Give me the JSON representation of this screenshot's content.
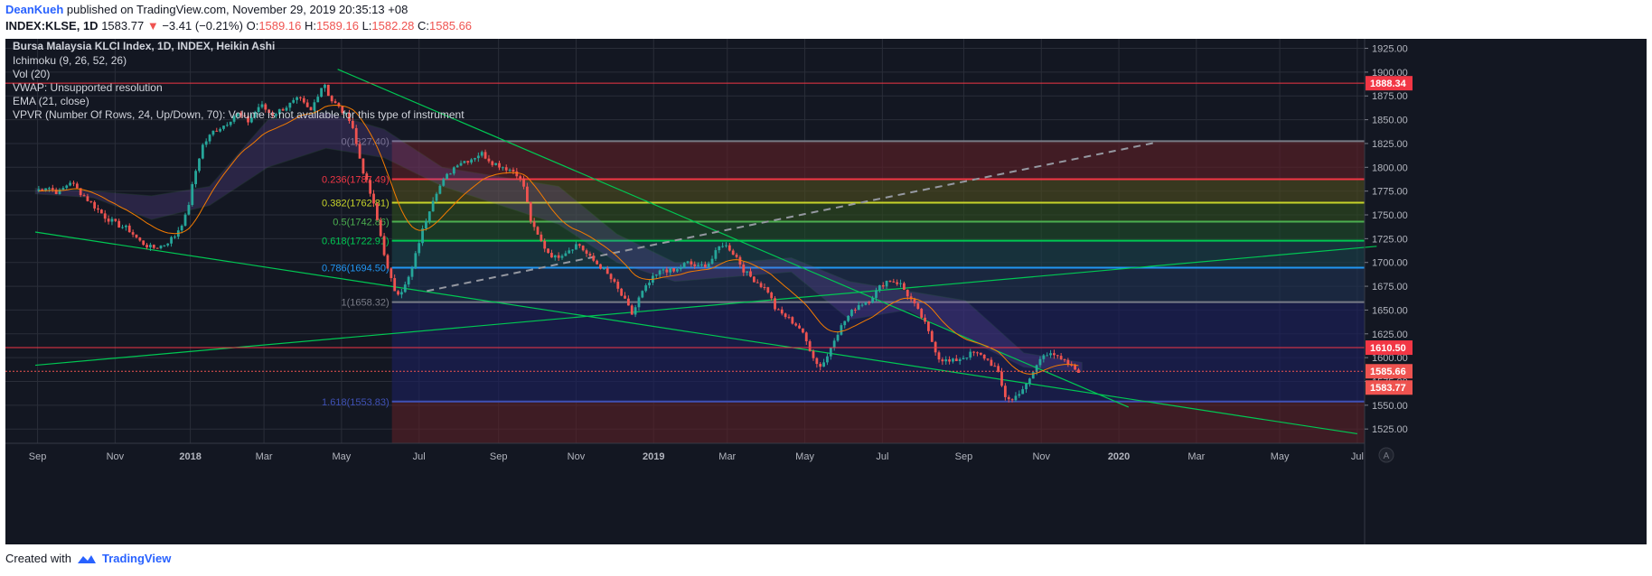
{
  "header": {
    "author": "DeanKueh",
    "published": "published on TradingView.com, November 29, 2019 20:35:13 +08",
    "symbol": "INDEX:KLSE, 1D",
    "last": "1583.77",
    "change": "−3.41 (−0.21%)",
    "o_label": "O:",
    "o_value": "1589.16",
    "h_label": "H:",
    "h_value": "1589.16",
    "l_label": "L:",
    "l_value": "1582.28",
    "c_label": "C:",
    "c_value": "1585.66"
  },
  "indicators": [
    "Bursa Malaysia KLCI Index, 1D, INDEX, Heikin Ashi",
    "Ichimoku (9, 26, 52, 26)",
    "Vol (20)",
    "VWAP: Unsupported resolution",
    "EMA (21, close)",
    "VPVR (Number Of Rows, 24, Up/Down, 70): Volume is not available for this type of instrument"
  ],
  "footer": {
    "created": "Created with",
    "brand": "TradingView"
  },
  "colors": {
    "bg": "#131722",
    "up": "#26a69a",
    "down": "#ef5350",
    "grid": "#2a2e39",
    "axis_text": "#b2b5be",
    "trend": "#00c853",
    "ema": "#f57c00"
  },
  "chart_data": {
    "type": "candlestick",
    "title": "Bursa Malaysia KLCI Index, 1D, INDEX, Heikin Ashi",
    "ylim": [
      1510,
      1935
    ],
    "y_ticks": [
      1525,
      1550,
      1575,
      1600,
      1625,
      1650,
      1675,
      1700,
      1725,
      1750,
      1775,
      1800,
      1825,
      1850,
      1875,
      1900,
      1925
    ],
    "y_tick_labels": [
      "1525.00",
      "1550.00",
      "1575.00",
      "1600.00",
      "1625.00",
      "1650.00",
      "1675.00",
      "1700.00",
      "1725.00",
      "1750.00",
      "1775.00",
      "1800.00",
      "1825.00",
      "1850.00",
      "1875.00",
      "1900.00",
      "1925.00"
    ],
    "x_ticks": [
      {
        "label": "Sep",
        "t": 0.06
      },
      {
        "label": "Nov",
        "t": 2.06
      },
      {
        "label": "2018",
        "t": 4.0
      },
      {
        "label": "Mar",
        "t": 5.9
      },
      {
        "label": "May",
        "t": 7.9
      },
      {
        "label": "Jul",
        "t": 9.9
      },
      {
        "label": "Sep",
        "t": 11.95
      },
      {
        "label": "Nov",
        "t": 13.95
      },
      {
        "label": "2019",
        "t": 15.95
      },
      {
        "label": "Mar",
        "t": 17.85
      },
      {
        "label": "May",
        "t": 19.85
      },
      {
        "label": "Jul",
        "t": 21.85
      },
      {
        "label": "Sep",
        "t": 23.95
      },
      {
        "label": "Nov",
        "t": 25.95
      },
      {
        "label": "2020",
        "t": 27.95
      },
      {
        "label": "Mar",
        "t": 29.95
      },
      {
        "label": "May",
        "t": 32.1
      },
      {
        "label": "Jul",
        "t": 34.1
      }
    ],
    "price_path": [
      [
        0,
        1775
      ],
      [
        0.3,
        1780
      ],
      [
        0.6,
        1773
      ],
      [
        0.9,
        1785
      ],
      [
        1.2,
        1772
      ],
      [
        1.5,
        1760
      ],
      [
        1.8,
        1748
      ],
      [
        2.1,
        1740
      ],
      [
        2.4,
        1735
      ],
      [
        2.7,
        1722
      ],
      [
        3.0,
        1715
      ],
      [
        3.3,
        1718
      ],
      [
        3.6,
        1728
      ],
      [
        3.9,
        1750
      ],
      [
        4.1,
        1790
      ],
      [
        4.3,
        1822
      ],
      [
        4.6,
        1838
      ],
      [
        4.9,
        1845
      ],
      [
        5.2,
        1857
      ],
      [
        5.5,
        1848
      ],
      [
        5.8,
        1866
      ],
      [
        6.1,
        1855
      ],
      [
        6.4,
        1862
      ],
      [
        6.8,
        1872
      ],
      [
        7.1,
        1858
      ],
      [
        7.3,
        1878
      ],
      [
        7.45,
        1890
      ],
      [
        7.6,
        1872
      ],
      [
        7.8,
        1864
      ],
      [
        8.0,
        1855
      ],
      [
        8.15,
        1850
      ],
      [
        8.3,
        1820
      ],
      [
        8.5,
        1790
      ],
      [
        8.7,
        1765
      ],
      [
        8.9,
        1730
      ],
      [
        9.1,
        1690
      ],
      [
        9.3,
        1668
      ],
      [
        9.5,
        1672
      ],
      [
        9.7,
        1690
      ],
      [
        9.9,
        1722
      ],
      [
        10.1,
        1748
      ],
      [
        10.3,
        1772
      ],
      [
        10.6,
        1790
      ],
      [
        10.9,
        1805
      ],
      [
        11.2,
        1808
      ],
      [
        11.5,
        1815
      ],
      [
        11.8,
        1805
      ],
      [
        12.1,
        1800
      ],
      [
        12.4,
        1795
      ],
      [
        12.6,
        1780
      ],
      [
        12.8,
        1740
      ],
      [
        13.0,
        1725
      ],
      [
        13.2,
        1712
      ],
      [
        13.4,
        1705
      ],
      [
        13.7,
        1712
      ],
      [
        14.0,
        1720
      ],
      [
        14.3,
        1705
      ],
      [
        14.6,
        1695
      ],
      [
        14.9,
        1680
      ],
      [
        15.2,
        1660
      ],
      [
        15.4,
        1645
      ],
      [
        15.6,
        1665
      ],
      [
        15.9,
        1682
      ],
      [
        16.2,
        1693
      ],
      [
        16.5,
        1690
      ],
      [
        16.8,
        1700
      ],
      [
        17.1,
        1695
      ],
      [
        17.4,
        1700
      ],
      [
        17.7,
        1720
      ],
      [
        17.9,
        1715
      ],
      [
        18.1,
        1705
      ],
      [
        18.3,
        1690
      ],
      [
        18.6,
        1680
      ],
      [
        18.9,
        1670
      ],
      [
        19.1,
        1650
      ],
      [
        19.4,
        1642
      ],
      [
        19.7,
        1632
      ],
      [
        19.95,
        1612
      ],
      [
        20.2,
        1590
      ],
      [
        20.4,
        1598
      ],
      [
        20.6,
        1620
      ],
      [
        20.9,
        1640
      ],
      [
        21.2,
        1655
      ],
      [
        21.5,
        1660
      ],
      [
        21.8,
        1675
      ],
      [
        22.0,
        1682
      ],
      [
        22.3,
        1678
      ],
      [
        22.6,
        1660
      ],
      [
        22.9,
        1640
      ],
      [
        23.1,
        1620
      ],
      [
        23.3,
        1600
      ],
      [
        23.6,
        1595
      ],
      [
        23.9,
        1600
      ],
      [
        24.2,
        1605
      ],
      [
        24.5,
        1600
      ],
      [
        24.8,
        1588
      ],
      [
        25.0,
        1560
      ],
      [
        25.2,
        1555
      ],
      [
        25.4,
        1565
      ],
      [
        25.6,
        1572
      ],
      [
        25.8,
        1590
      ],
      [
        26.0,
        1603
      ],
      [
        26.2,
        1607
      ],
      [
        26.4,
        1598
      ],
      [
        26.6,
        1594
      ],
      [
        26.8,
        1588
      ],
      [
        26.95,
        1586
      ]
    ],
    "fib_levels": [
      {
        "ratio": "0",
        "price": 1827.4,
        "label": "0(1827.40)",
        "color": "#787b86"
      },
      {
        "ratio": "0.236",
        "price": 1787.49,
        "label": "0.236(1787.49)",
        "color": "#f23645"
      },
      {
        "ratio": "0.382",
        "price": 1762.81,
        "label": "0.382(1762.81)",
        "color": "#c7d42a"
      },
      {
        "ratio": "0.5",
        "price": 1742.86,
        "label": "0.5(1742.86)",
        "color": "#4caf50"
      },
      {
        "ratio": "0.618",
        "price": 1722.91,
        "label": "0.618(1722.91)",
        "color": "#00c853"
      },
      {
        "ratio": "0.786",
        "price": 1694.5,
        "label": "0.786(1694.50)",
        "color": "#2196f3"
      },
      {
        "ratio": "1",
        "price": 1658.32,
        "label": "1(1658.32)",
        "color": "#787b86"
      },
      {
        "ratio": "1.618",
        "price": 1553.83,
        "label": "1.618(1553.83)",
        "color": "#3f51b5"
      }
    ],
    "fib_start_t": 9.2,
    "horizontal_levels": [
      {
        "price": 1888.34,
        "label": "1888.34",
        "color": "#f23645"
      },
      {
        "price": 1610.5,
        "label": "1610.50",
        "color": "#f23645"
      }
    ],
    "price_labels": [
      {
        "price": 1585.66,
        "label": "1585.66",
        "color": "#ef5350"
      },
      {
        "price": 1583.77,
        "label": "1583.77",
        "color": "#ef5350"
      }
    ],
    "trend_lines": [
      {
        "t1": 7.8,
        "p1": 1903,
        "t2": 28.2,
        "p2": 1548
      },
      {
        "t1": 0,
        "p1": 1732,
        "t2": 34.1,
        "p2": 1520
      },
      {
        "t1": 0,
        "p1": 1592,
        "t2": 34.6,
        "p2": 1717
      }
    ],
    "dashed_line": {
      "t1": 10.1,
      "p1": 1670,
      "t2": 28.9,
      "p2": 1826
    },
    "cloud_samples": [
      [
        0,
        1772,
        1778
      ],
      [
        1.5,
        1768,
        1775
      ],
      [
        3,
        1745,
        1770
      ],
      [
        4.5,
        1760,
        1780
      ],
      [
        6,
        1800,
        1850
      ],
      [
        7.5,
        1820,
        1858
      ],
      [
        9,
        1810,
        1840
      ],
      [
        10.5,
        1780,
        1800
      ],
      [
        12,
        1760,
        1790
      ],
      [
        13.5,
        1740,
        1780
      ],
      [
        15,
        1700,
        1730
      ],
      [
        16.5,
        1680,
        1700
      ],
      [
        18,
        1685,
        1700
      ],
      [
        19.5,
        1690,
        1705
      ],
      [
        21,
        1640,
        1680
      ],
      [
        22.5,
        1650,
        1670
      ],
      [
        24,
        1620,
        1660
      ],
      [
        25.5,
        1590,
        1605
      ],
      [
        27,
        1585,
        1595
      ]
    ]
  }
}
